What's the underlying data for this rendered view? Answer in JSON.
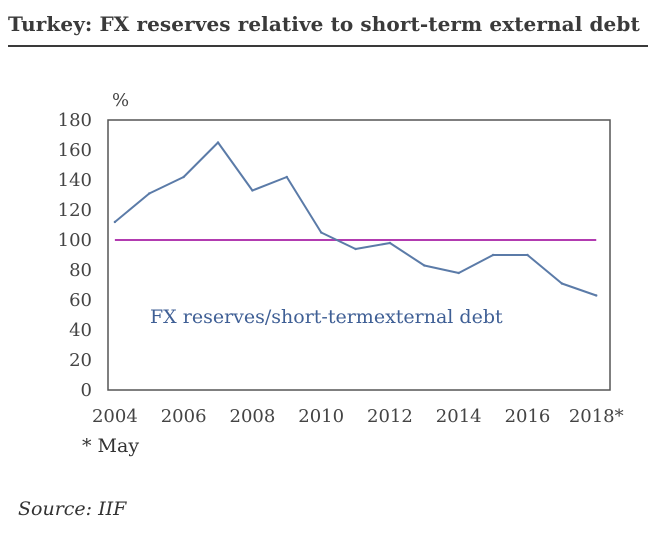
{
  "header": {
    "title": "Turkey: FX reserves relative to short-term external debt"
  },
  "chart_data": {
    "type": "line",
    "title": "Turkey: FX reserves relative to short-term external debt",
    "ylabel": "%",
    "xlabel": "",
    "ylim": [
      0,
      180
    ],
    "yticks": [
      0,
      20,
      40,
      60,
      80,
      100,
      120,
      140,
      160,
      180
    ],
    "xlim": [
      2003.8,
      2018.4
    ],
    "xtick_labels": [
      "2004",
      "2006",
      "2008",
      "2010",
      "2012",
      "2014",
      "2016",
      "2018*"
    ],
    "xtick_values": [
      2004,
      2006,
      2008,
      2010,
      2012,
      2014,
      2016,
      2018
    ],
    "series": [
      {
        "name": "FX reserves/short-termexternal debt",
        "color": "#5b7ba8",
        "x": [
          2004,
          2005,
          2006,
          2007,
          2008,
          2009,
          2010,
          2011,
          2012,
          2013,
          2014,
          2015,
          2016,
          2017,
          2018
        ],
        "values": [
          112,
          131,
          142,
          165,
          133,
          142,
          105,
          94,
          98,
          83,
          78,
          90,
          90,
          71,
          63
        ]
      }
    ],
    "reference_line": {
      "value": 100,
      "color": "#b23bb0"
    },
    "grid": false,
    "legend": "inside-center-left"
  },
  "footnote": "* May",
  "source": "Source: IIF"
}
